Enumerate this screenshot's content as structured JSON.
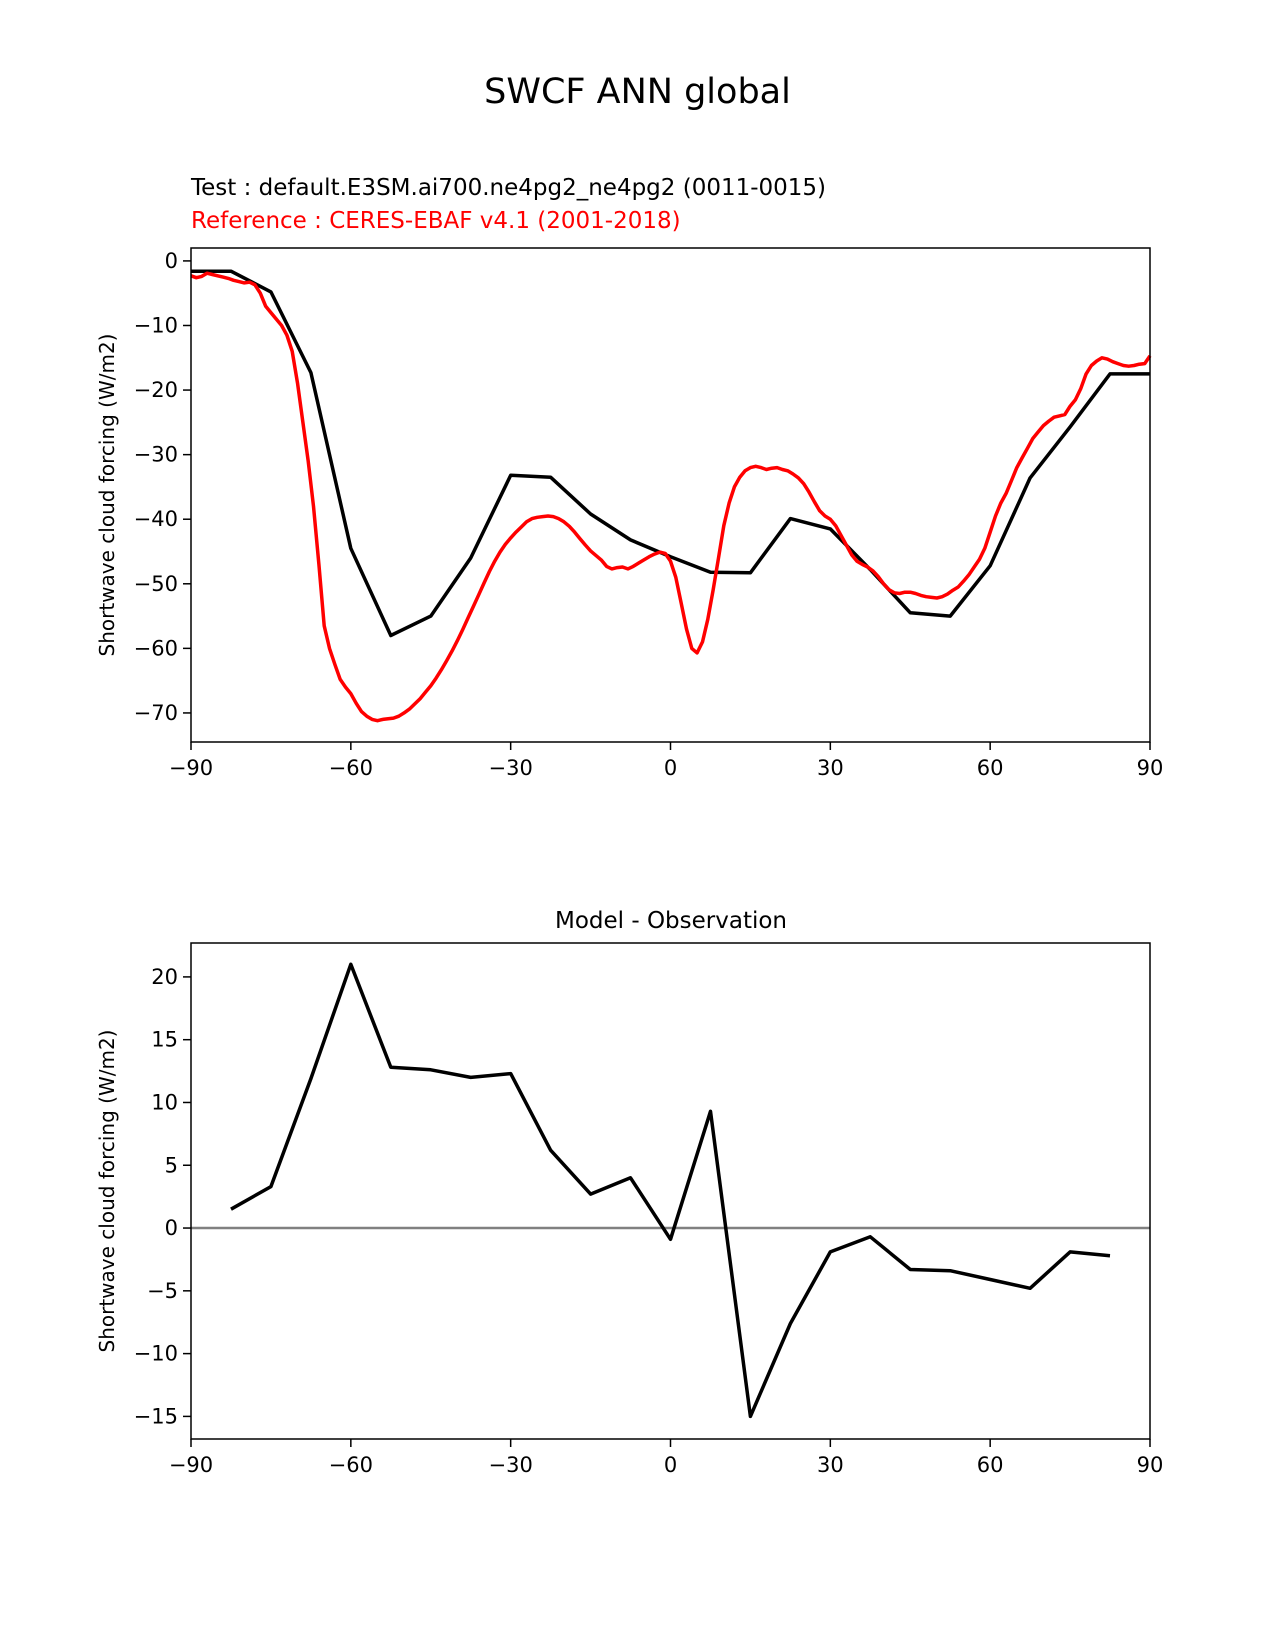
{
  "figure": {
    "suptitle": "SWCF ANN global",
    "top_panel": {
      "test_label": "Test : default.E3SM.ai700.ne4pg2_ne4pg2 (0011-0015)",
      "ref_label": "Reference : CERES-EBAF v4.1 (2001-2018)",
      "ref_color": "#ff0000",
      "test_color": "#000000"
    },
    "bottom_panel": {
      "title": "Model - Observation",
      "zero_line_color": "#808080"
    }
  },
  "chart_data": [
    {
      "type": "line",
      "title": "",
      "xlabel": "",
      "ylabel": "Shortwave cloud forcing (W/m2)",
      "xlim": [
        -90,
        90
      ],
      "ylim": [
        -74.5,
        2
      ],
      "xticks": [
        -90,
        -60,
        -30,
        0,
        30,
        60,
        90
      ],
      "yticks": [
        0,
        -10,
        -20,
        -30,
        -40,
        -50,
        -60,
        -70
      ],
      "grid": false,
      "series": [
        {
          "color": "#000000",
          "x": [
            -90,
            -82.5,
            -75,
            -67.5,
            -60,
            -52.5,
            -45,
            -37.5,
            -30,
            -22.5,
            -15,
            -7.5,
            0,
            7.5,
            15,
            22.5,
            30,
            37.5,
            45,
            52.5,
            60,
            67.5,
            75,
            82.5,
            90
          ],
          "y": [
            -1.6,
            -1.6,
            -4.8,
            -17.3,
            -44.5,
            -58,
            -55,
            -46,
            -33.2,
            -33.5,
            -39.2,
            -43.2,
            -45.8,
            -48.2,
            -48.3,
            -39.9,
            -41.5,
            -47.8,
            -54.5,
            -55,
            -47.2,
            -33.6,
            -25.7,
            -17.5,
            -17.5
          ]
        },
        {
          "color": "#ff0000",
          "x": [
            -90,
            -89,
            -88,
            -87,
            -86,
            -85,
            -84,
            -83,
            -82,
            -81,
            -80,
            -79,
            -78,
            -77,
            -76,
            -75,
            -74,
            -73,
            -72,
            -71,
            -70,
            -69,
            -68,
            -67,
            -66,
            -65,
            -64,
            -63,
            -62,
            -61,
            -60,
            -59,
            -58,
            -57,
            -56,
            -55,
            -54,
            -53,
            -52,
            -51,
            -50,
            -49,
            -48,
            -47,
            -46,
            -45,
            -44,
            -43,
            -42,
            -41,
            -40,
            -39,
            -38,
            -37,
            -36,
            -35,
            -34,
            -33,
            -32,
            -31,
            -30,
            -29,
            -28,
            -27,
            -26,
            -25,
            -24,
            -23,
            -22,
            -21,
            -20,
            -19,
            -18,
            -17,
            -16,
            -15,
            -14,
            -13,
            -12,
            -11,
            -10,
            -9,
            -8,
            -7,
            -6,
            -5,
            -4,
            -3,
            -2,
            -1,
            0,
            1,
            2,
            3,
            4,
            5,
            6,
            7,
            8,
            9,
            10,
            11,
            12,
            13,
            14,
            15,
            16,
            17,
            18,
            19,
            20,
            21,
            22,
            23,
            24,
            25,
            26,
            27,
            28,
            29,
            30,
            31,
            32,
            33,
            34,
            35,
            36,
            37,
            38,
            39,
            40,
            41,
            42,
            43,
            44,
            45,
            46,
            47,
            48,
            49,
            50,
            51,
            52,
            53,
            54,
            55,
            56,
            57,
            58,
            59,
            60,
            61,
            62,
            63,
            64,
            65,
            66,
            67,
            68,
            69,
            70,
            71,
            72,
            73,
            74,
            75,
            76,
            77,
            78,
            79,
            80,
            81,
            82,
            83,
            84,
            85,
            86,
            87,
            88,
            89,
            90
          ],
          "y": [
            -2.3,
            -2.6,
            -2.4,
            -1.9,
            -2.1,
            -2.3,
            -2.5,
            -2.7,
            -3.0,
            -3.2,
            -3.4,
            -3.3,
            -3.7,
            -5.0,
            -7.0,
            -8.0,
            -9.0,
            -10.0,
            -11.5,
            -14.0,
            -19.0,
            -25.0,
            -31.0,
            -38.0,
            -47.0,
            -56.5,
            -60.0,
            -62.5,
            -64.8,
            -66.0,
            -67.0,
            -68.5,
            -69.8,
            -70.5,
            -71.0,
            -71.2,
            -71.0,
            -70.9,
            -70.8,
            -70.5,
            -70.0,
            -69.4,
            -68.6,
            -67.8,
            -66.8,
            -65.8,
            -64.6,
            -63.3,
            -61.9,
            -60.4,
            -58.8,
            -57.1,
            -55.3,
            -53.5,
            -51.7,
            -49.9,
            -48.1,
            -46.5,
            -45.1,
            -43.9,
            -42.9,
            -42.0,
            -41.2,
            -40.4,
            -39.9,
            -39.7,
            -39.6,
            -39.5,
            -39.6,
            -39.9,
            -40.4,
            -41.1,
            -42.0,
            -43.0,
            -44.0,
            -44.9,
            -45.6,
            -46.3,
            -47.3,
            -47.7,
            -47.5,
            -47.4,
            -47.7,
            -47.3,
            -46.8,
            -46.3,
            -45.8,
            -45.4,
            -45.1,
            -45.3,
            -46.5,
            -49.0,
            -53.0,
            -57.0,
            -60.0,
            -60.7,
            -59.0,
            -55.5,
            -51.0,
            -46.0,
            -41.0,
            -37.5,
            -35.0,
            -33.5,
            -32.5,
            -32.0,
            -31.8,
            -32.0,
            -32.3,
            -32.1,
            -32.0,
            -32.3,
            -32.5,
            -33.0,
            -33.6,
            -34.5,
            -35.8,
            -37.3,
            -38.7,
            -39.5,
            -40.0,
            -41.0,
            -42.5,
            -44.0,
            -45.5,
            -46.5,
            -47.0,
            -47.4,
            -48.0,
            -48.9,
            -50.0,
            -50.9,
            -51.4,
            -51.5,
            -51.3,
            -51.3,
            -51.5,
            -51.8,
            -52.0,
            -52.1,
            -52.2,
            -52.0,
            -51.6,
            -51.0,
            -50.5,
            -49.6,
            -48.6,
            -47.4,
            -46.2,
            -44.5,
            -42.0,
            -39.5,
            -37.5,
            -36.0,
            -34.0,
            -32.0,
            -30.5,
            -29.0,
            -27.5,
            -26.5,
            -25.5,
            -24.8,
            -24.2,
            -24.0,
            -23.8,
            -22.5,
            -21.5,
            -19.8,
            -17.5,
            -16.2,
            -15.5,
            -15.0,
            -15.2,
            -15.6,
            -15.9,
            -16.2,
            -16.3,
            -16.2,
            -16.0,
            -15.9,
            -14.7
          ]
        }
      ]
    },
    {
      "type": "line",
      "title": "Model - Observation",
      "xlabel": "",
      "ylabel": "Shortwave cloud forcing (W/m2)",
      "xlim": [
        -90,
        90
      ],
      "ylim": [
        -16.8,
        22.7
      ],
      "xticks": [
        -90,
        -60,
        -30,
        0,
        30,
        60,
        90
      ],
      "yticks": [
        20,
        15,
        10,
        5,
        0,
        -5,
        -10,
        -15
      ],
      "grid": false,
      "zero_line": true,
      "series": [
        {
          "color": "#000000",
          "x": [
            -82.5,
            -75,
            -67.5,
            -60,
            -52.5,
            -45,
            -37.5,
            -30,
            -22.5,
            -15,
            -7.5,
            0,
            7.5,
            15,
            22.5,
            30,
            37.5,
            45,
            52.5,
            60,
            67.5,
            75,
            82.5
          ],
          "y": [
            1.5,
            3.3,
            11.9,
            21.0,
            12.8,
            12.6,
            12.0,
            12.3,
            6.2,
            2.7,
            4.0,
            -0.9,
            9.3,
            -15.0,
            -7.6,
            -1.9,
            -0.7,
            -3.3,
            -3.4,
            -4.1,
            -4.8,
            -1.9,
            -2.2
          ]
        }
      ]
    }
  ]
}
